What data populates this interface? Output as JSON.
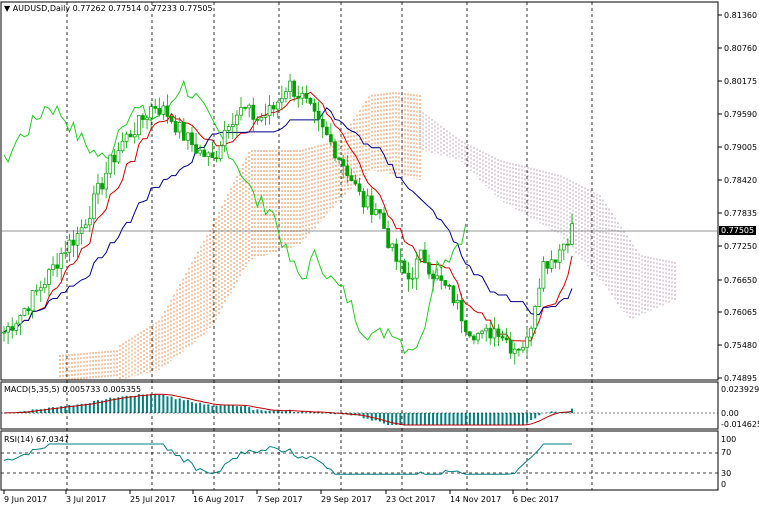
{
  "header": {
    "symbol_timeframe": "AUDUSD,Daily",
    "ohlc": "0.77262 0.77514 0.77233 0.77505"
  },
  "price_axis": {
    "labels": [
      "0.81360",
      "0.80760",
      "0.80175",
      "0.79590",
      "0.79005",
      "0.78420",
      "0.77835",
      "0.77250",
      "0.76650",
      "0.76065",
      "0.75480",
      "0.74895"
    ],
    "current_price": "0.77505"
  },
  "macd_panel": {
    "label": "MACD(5,35,5) 0.005733 0.005355",
    "axis_labels": [
      "0.023929",
      "0.00",
      "-0.014625"
    ]
  },
  "rsi_panel": {
    "label": "RSI(14) 67.0347",
    "axis_labels": [
      "100",
      "70",
      "30",
      "0"
    ]
  },
  "time_axis": {
    "labels": [
      "9 Jun 2017",
      "3 Jul 2017",
      "25 Jul 2017",
      "16 Aug 2017",
      "7 Sep 2017",
      "29 Sep 2017",
      "23 Oct 2017",
      "14 Nov 2017",
      "6 Dec 2017"
    ]
  },
  "chart_data": {
    "type": "candlestick",
    "symbol": "AUDUSD",
    "timeframe": "Daily",
    "ylim": [
      0.7461,
      0.8162
    ],
    "close_path": [
      0.755,
      0.758,
      0.762,
      0.766,
      0.771,
      0.774,
      0.78,
      0.787,
      0.792,
      0.795,
      0.799,
      0.797,
      0.793,
      0.79,
      0.788,
      0.796,
      0.798,
      0.796,
      0.798,
      0.803,
      0.8,
      0.795,
      0.791,
      0.786,
      0.78,
      0.779,
      0.77,
      0.765,
      0.77,
      0.765,
      0.762,
      0.756,
      0.754,
      0.756,
      0.752,
      0.753,
      0.768,
      0.77,
      0.775
    ]
  },
  "colors": {
    "candle": "#00a000",
    "tenkan": "#d00000",
    "kijun": "#00008b",
    "chikou": "#22cc22",
    "cloud_bull": "#e07020",
    "cloud_bear": "#b090b0",
    "macd_hist": "#008080",
    "macd_signal": "#c00000",
    "rsi_line": "#008080"
  }
}
